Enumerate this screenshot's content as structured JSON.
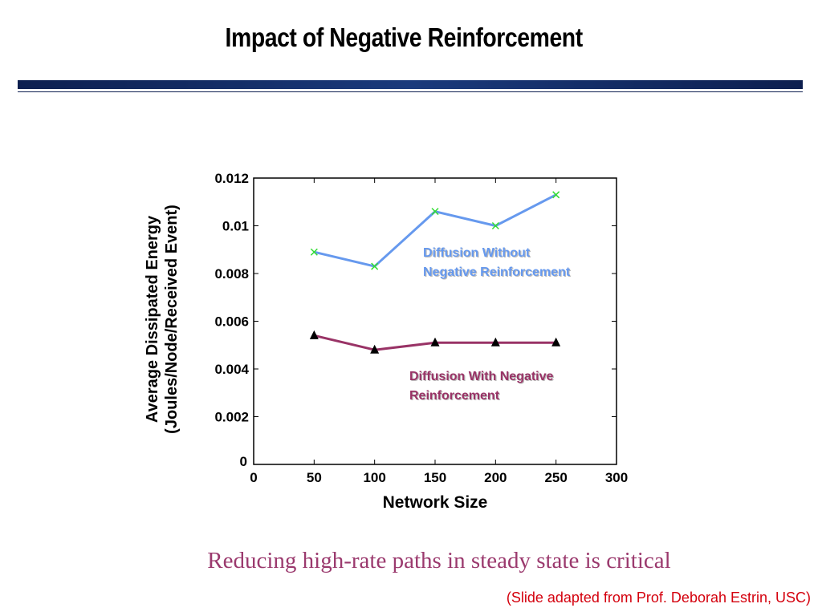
{
  "slide": {
    "title": "Impact of Negative Reinforcement",
    "caption": "Reducing high-rate paths in steady state is critical",
    "attribution": "(Slide adapted from Prof. Deborah Estrin, USC)"
  },
  "chart_data": {
    "type": "line",
    "title": "",
    "xlabel": "Network Size",
    "ylabel_lines": [
      "Average Dissipated Energy",
      "(Joules/Node/Received Event)"
    ],
    "xlim": [
      0,
      300
    ],
    "ylim": [
      0,
      0.012
    ],
    "x_ticks": [
      "0",
      "50",
      "100",
      "150",
      "200",
      "250",
      "300"
    ],
    "y_ticks": [
      "0",
      "0.002",
      "0.004",
      "0.006",
      "0.008",
      "0.01",
      "0.012"
    ],
    "grid": false,
    "x": [
      50,
      100,
      150,
      200,
      250
    ],
    "series": [
      {
        "name_lines": [
          "Diffusion Without",
          "Negative Reinforcement"
        ],
        "values": [
          0.0089,
          0.0083,
          0.0106,
          0.01,
          0.0113
        ],
        "line_color": "#6699ee",
        "marker": "x",
        "marker_color": "#33dd33"
      },
      {
        "name_lines": [
          "Diffusion With Negative",
          "Reinforcement"
        ],
        "values": [
          0.0054,
          0.0048,
          0.0051,
          0.0051,
          0.0051
        ],
        "line_color": "#993366",
        "marker": "triangle",
        "marker_color": "#000000"
      }
    ]
  }
}
